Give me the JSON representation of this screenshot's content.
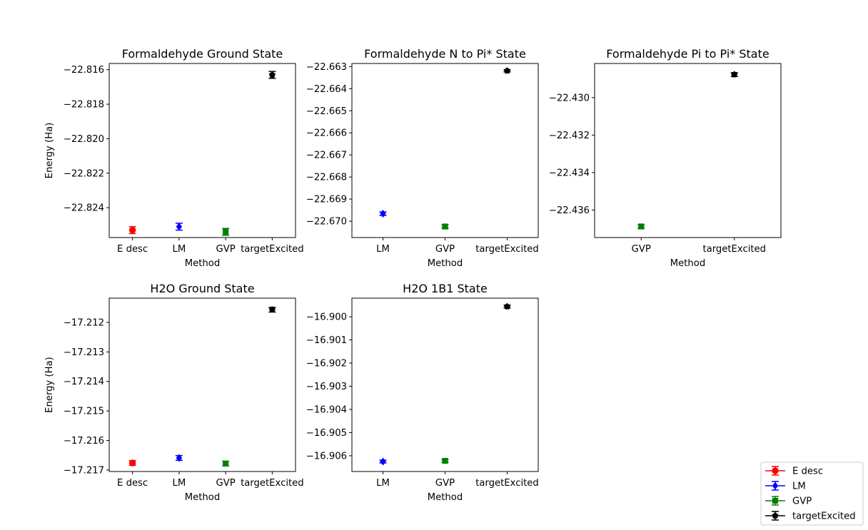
{
  "colors": {
    "E desc": "#ff0000",
    "LM": "#0000ff",
    "GVP": "#008000",
    "targetExcited": "#000000"
  },
  "markers": {
    "E desc": "circle",
    "LM": "diamond",
    "GVP": "square",
    "targetExcited": "pentagon"
  },
  "legend": {
    "placement": "bottom-right",
    "entries": [
      "E desc",
      "LM",
      "GVP",
      "targetExcited"
    ]
  },
  "chart_data": [
    {
      "type": "scatter",
      "title": "Formaldehyde Ground State",
      "xlabel": "Method",
      "ylabel": "Energy (Ha)",
      "categories": [
        "E desc",
        "LM",
        "GVP",
        "targetExcited"
      ],
      "values": [
        -22.8253,
        -22.8251,
        -22.8254,
        -22.8163
      ],
      "errors": [
        0.0002,
        0.0002,
        0.0002,
        0.0002
      ],
      "ylim": [
        -22.82573,
        -22.81564
      ],
      "yticks": [
        -22.816,
        -22.818,
        -22.82,
        -22.822,
        -22.824
      ],
      "ytick_labels": [
        "−22.816",
        "−22.818",
        "−22.820",
        "−22.822",
        "−22.824"
      ]
    },
    {
      "type": "scatter",
      "title": "Formaldehyde N to Pi* State",
      "xlabel": "Method",
      "ylabel": "",
      "categories": [
        "LM",
        "GVP",
        "targetExcited"
      ],
      "values": [
        -22.66966,
        -22.67024,
        -22.66319
      ],
      "errors": [
        8e-05,
        8e-05,
        5e-05
      ],
      "ylim": [
        -22.67074,
        -22.66286
      ],
      "yticks": [
        -22.663,
        -22.664,
        -22.665,
        -22.666,
        -22.667,
        -22.668,
        -22.669,
        -22.67
      ],
      "ytick_labels": [
        "−22.663",
        "−22.664",
        "−22.665",
        "−22.666",
        "−22.667",
        "−22.668",
        "−22.669",
        "−22.670"
      ]
    },
    {
      "type": "scatter",
      "title": "Formaldehyde Pi to Pi* State",
      "xlabel": "Method",
      "ylabel": "",
      "categories": [
        "GVP",
        "targetExcited"
      ],
      "values": [
        -22.43688,
        -22.42877
      ],
      "errors": [
        0.0001,
        0.0001
      ],
      "ylim": [
        -22.43747,
        -22.42818
      ],
      "yticks": [
        -22.43,
        -22.432,
        -22.434,
        -22.436
      ],
      "ytick_labels": [
        "−22.430",
        "−22.432",
        "−22.434",
        "−22.436"
      ]
    },
    {
      "type": "scatter",
      "title": "H2O Ground State",
      "xlabel": "Method",
      "ylabel": "Energy (Ha)",
      "categories": [
        "E desc",
        "LM",
        "GVP",
        "targetExcited"
      ],
      "values": [
        -17.21676,
        -17.21659,
        -17.21678,
        -17.21157
      ],
      "errors": [
        8e-05,
        8e-05,
        8e-05,
        8e-05
      ],
      "ylim": [
        -17.21705,
        -17.21118
      ],
      "yticks": [
        -17.212,
        -17.213,
        -17.214,
        -17.215,
        -17.216,
        -17.217
      ],
      "ytick_labels": [
        "−17.212",
        "−17.213",
        "−17.214",
        "−17.215",
        "−17.216",
        "−17.217"
      ]
    },
    {
      "type": "scatter",
      "title": "H2O 1B1 State",
      "xlabel": "Method",
      "ylabel": "",
      "categories": [
        "LM",
        "GVP",
        "targetExcited"
      ],
      "values": [
        -16.90625,
        -16.90622,
        -16.89956
      ],
      "errors": [
        6e-05,
        6e-05,
        6e-05
      ],
      "ylim": [
        -16.90668,
        -16.8992
      ],
      "yticks": [
        -16.9,
        -16.901,
        -16.902,
        -16.903,
        -16.904,
        -16.905,
        -16.906
      ],
      "ytick_labels": [
        "−16.900",
        "−16.901",
        "−16.902",
        "−16.903",
        "−16.904",
        "−16.905",
        "−16.906"
      ]
    }
  ]
}
